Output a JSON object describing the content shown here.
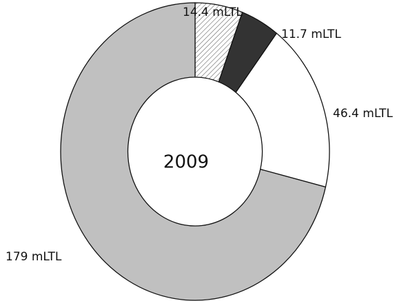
{
  "chart_data": {
    "type": "donut",
    "center_label": "2009",
    "categories": [
      null,
      null,
      null,
      null
    ],
    "values": [
      14.4,
      11.7,
      46.4,
      179
    ],
    "value_labels": [
      "14.4 mLTL",
      "11.7 mLTL",
      "46.4 mLTL",
      "179 mLTL"
    ],
    "colors": [
      "hatch",
      "#333333",
      "#ffffff",
      "#c0c0c0"
    ]
  }
}
